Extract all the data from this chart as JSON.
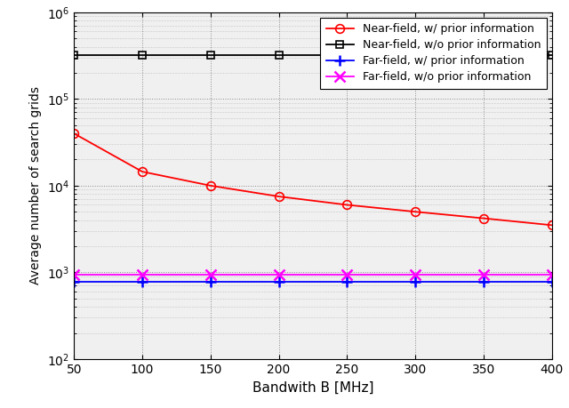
{
  "x": [
    50,
    100,
    150,
    200,
    250,
    300,
    350,
    400
  ],
  "near_field_prior": [
    40000,
    14500,
    10000,
    7500,
    6000,
    5000,
    4200,
    3500
  ],
  "near_field_no_prior": [
    320000,
    320000,
    320000,
    320000,
    320000,
    320000,
    320000,
    320000
  ],
  "far_field_prior": [
    780,
    780,
    780,
    780,
    780,
    780,
    780,
    780
  ],
  "far_field_no_prior": [
    950,
    950,
    950,
    950,
    950,
    950,
    950,
    950
  ],
  "xlabel": "Bandwith B [MHz]",
  "ylabel": "Average number of search grids",
  "xlim": [
    50,
    400
  ],
  "ylim": [
    100,
    1000000
  ],
  "xticks": [
    50,
    100,
    150,
    200,
    250,
    300,
    350,
    400
  ],
  "legend_labels": [
    "Near-field, w/ prior information",
    "Near-field, w/o prior information",
    "Far-field, w/ prior information",
    "Far-field, w/o prior information"
  ],
  "line_colors": [
    "red",
    "black",
    "blue",
    "magenta"
  ],
  "line_markers": [
    "o",
    "s",
    "+",
    "x"
  ],
  "background_color": "#f0f0f0"
}
